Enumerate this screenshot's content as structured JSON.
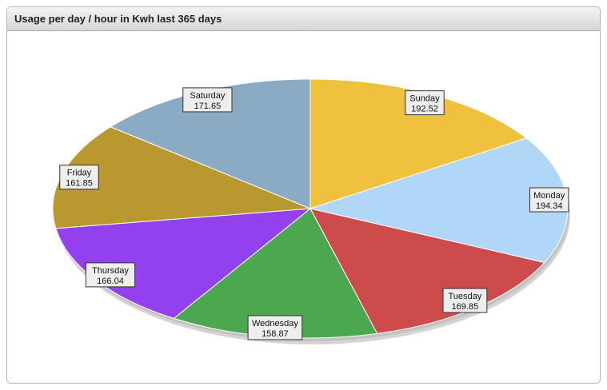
{
  "panel": {
    "title": "Usage per day / hour in Kwh last 365 days"
  },
  "chart_data": {
    "type": "pie",
    "title": "Usage per day / hour in Kwh last 365 days",
    "slices": [
      {
        "label": "Sunday",
        "value": 192.52,
        "color": "#EFC13D"
      },
      {
        "label": "Monday",
        "value": 194.34,
        "color": "#B0D7F7"
      },
      {
        "label": "Tuesday",
        "value": 169.85,
        "color": "#CD4B4B"
      },
      {
        "label": "Wednesday",
        "value": 158.87,
        "color": "#4BA84E"
      },
      {
        "label": "Thursday",
        "value": 166.04,
        "color": "#9340EE"
      },
      {
        "label": "Friday",
        "value": 161.85,
        "color": "#BA9830"
      },
      {
        "label": "Saturday",
        "value": 171.65,
        "color": "#8BABC5"
      }
    ],
    "start_angle_deg": -90,
    "direction": "clockwise",
    "style": "3d-tilted"
  }
}
